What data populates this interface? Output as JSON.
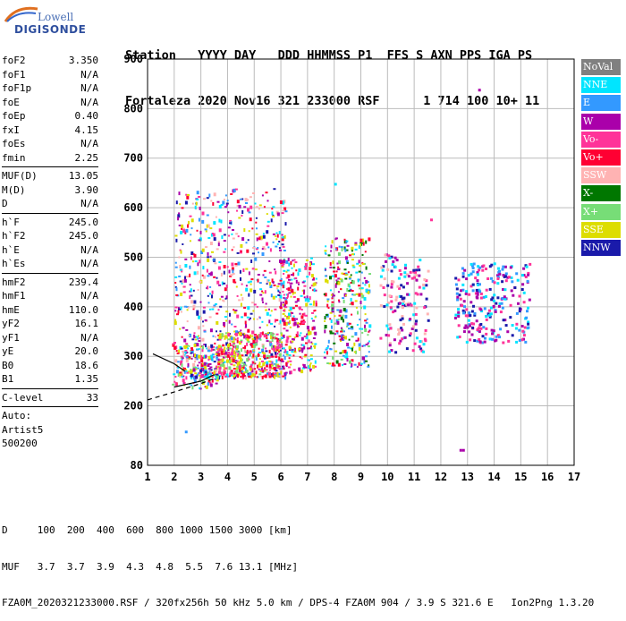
{
  "logo": {
    "line1": "Lowell",
    "line2": "DIGISONDE"
  },
  "header": {
    "line1": "Station   YYYY DAY   DDD HHMMSS P1  FFS S AXN PPS IGA PS",
    "line2": "Fortaleza 2020 Nov16 321 233000 RSF      1 714 100 10+ 11"
  },
  "params": [
    {
      "name": "foF2",
      "value": "3.350"
    },
    {
      "name": "foF1",
      "value": "N/A"
    },
    {
      "name": "foF1p",
      "value": "N/A"
    },
    {
      "name": "foE",
      "value": "N/A"
    },
    {
      "name": "foEp",
      "value": "0.40"
    },
    {
      "name": "fxI",
      "value": "4.15"
    },
    {
      "name": "foEs",
      "value": "N/A"
    },
    {
      "name": "fmin",
      "value": "2.25"
    },
    {
      "sep": true
    },
    {
      "name": "MUF(D)",
      "value": "13.05"
    },
    {
      "name": "M(D)",
      "value": "3.90"
    },
    {
      "name": "D",
      "value": "N/A"
    },
    {
      "sep": true
    },
    {
      "name": "h`F",
      "value": "245.0"
    },
    {
      "name": "h`F2",
      "value": "245.0"
    },
    {
      "name": "h`E",
      "value": "N/A"
    },
    {
      "name": "h`Es",
      "value": "N/A"
    },
    {
      "sep": true
    },
    {
      "name": "hmF2",
      "value": "239.4"
    },
    {
      "name": "hmF1",
      "value": "N/A"
    },
    {
      "name": "hmE",
      "value": "110.0"
    },
    {
      "name": "yF2",
      "value": "16.1"
    },
    {
      "name": "yF1",
      "value": "N/A"
    },
    {
      "name": "yE",
      "value": "20.0"
    },
    {
      "name": "B0",
      "value": "18.6"
    },
    {
      "name": "B1",
      "value": "1.35"
    },
    {
      "sep": true
    },
    {
      "name": "C-level",
      "value": "33"
    },
    {
      "sep": true
    },
    {
      "text": "Auto:"
    },
    {
      "text": "Artist5"
    },
    {
      "text": "500200"
    }
  ],
  "legend": [
    {
      "label": "NoVal",
      "color": "#808080"
    },
    {
      "label": "NNE",
      "color": "#00e5ff"
    },
    {
      "label": "E",
      "color": "#3399ff"
    },
    {
      "label": "W",
      "color": "#aa00aa"
    },
    {
      "label": "Vo-",
      "color": "#ff3399"
    },
    {
      "label": "Vo+",
      "color": "#ff0033"
    },
    {
      "label": "SSW",
      "color": "#ffb3b3"
    },
    {
      "label": "X-",
      "color": "#007700"
    },
    {
      "label": "X+",
      "color": "#77dd77"
    },
    {
      "label": "SSE",
      "color": "#dddd00"
    },
    {
      "label": "NNW",
      "color": "#1a1aaa"
    }
  ],
  "footer": {
    "line1": "D     100  200  400  600  800 1000 1500 3000 [km]",
    "line2": "MUF   3.7  3.7  3.9  4.3  4.8  5.5  7.6 13.1 [MHz]",
    "line3": "FZA0M_2020321233000.RSF / 320fx256h 50 kHz 5.0 km / DPS-4 FZA0M 904 / 3.9 S 321.6 E   Ion2Png 1.3.20"
  },
  "chart_data": {
    "type": "scatter",
    "xlim": [
      1,
      17
    ],
    "ylim": [
      80,
      900
    ],
    "x_ticks": [
      1,
      2,
      3,
      4,
      5,
      6,
      7,
      8,
      9,
      10,
      11,
      12,
      13,
      14,
      15,
      16,
      17
    ],
    "y_ticks": [
      80,
      200,
      300,
      400,
      500,
      600,
      700,
      800,
      900
    ],
    "grid": true,
    "legend_position": "right",
    "trace_clusters": [
      {
        "x_range": [
          1.9,
          3.6
        ],
        "y_range": [
          235,
          330
        ],
        "colors": [
          "Vo+",
          "SSE",
          "NNE",
          "E",
          "W",
          "Vo-",
          "X+"
        ]
      },
      {
        "x_range": [
          2.0,
          6.2
        ],
        "y_range": [
          260,
          640
        ],
        "colors": [
          "W",
          "Vo-",
          "Vo+",
          "SSE",
          "SSW",
          "NNE",
          "E",
          "NNW"
        ]
      },
      {
        "x_range": [
          3.6,
          6.0
        ],
        "y_range": [
          260,
          350
        ],
        "colors": [
          "SSE",
          "Vo+",
          "X+",
          "Vo-"
        ]
      },
      {
        "x_range": [
          6.0,
          7.3
        ],
        "y_range": [
          270,
          500
        ],
        "colors": [
          "Vo+",
          "SSE",
          "W",
          "Vo-",
          "NNE"
        ]
      },
      {
        "x_range": [
          7.6,
          9.3
        ],
        "y_range": [
          280,
          540
        ],
        "colors": [
          "SSE",
          "X-",
          "X+",
          "Vo+",
          "NNE",
          "W",
          "E"
        ]
      },
      {
        "x_range": [
          9.7,
          11.5
        ],
        "y_range": [
          310,
          510
        ],
        "colors": [
          "SSW",
          "Vo-",
          "NNE",
          "NNW",
          "W"
        ]
      },
      {
        "x_range": [
          12.5,
          15.3
        ],
        "y_range": [
          330,
          490
        ],
        "colors": [
          "NNW",
          "W",
          "NNE",
          "E",
          "Vo-"
        ]
      }
    ],
    "isolated_points": [
      {
        "x": 13.4,
        "y": 840,
        "color": "W"
      },
      {
        "x": 12.7,
        "y": 113,
        "color": "W"
      },
      {
        "x": 12.8,
        "y": 113,
        "color": "W"
      },
      {
        "x": 2.4,
        "y": 150,
        "color": "E"
      },
      {
        "x": 11.6,
        "y": 578,
        "color": "Vo-"
      },
      {
        "x": 8.0,
        "y": 650,
        "color": "NNE"
      }
    ],
    "lines": [
      {
        "name": "profile",
        "style": "solid",
        "points": [
          [
            2.0,
            238
          ],
          [
            3.0,
            250
          ],
          [
            3.5,
            263
          ]
        ]
      },
      {
        "name": "profile-dashed",
        "style": "dashed",
        "points": [
          [
            1.0,
            212
          ],
          [
            2.0,
            228
          ],
          [
            3.0,
            245
          ],
          [
            3.5,
            255
          ]
        ]
      },
      {
        "name": "ledge",
        "style": "solid",
        "points": [
          [
            1.2,
            305
          ],
          [
            2.0,
            285
          ],
          [
            2.4,
            270
          ]
        ]
      }
    ]
  }
}
